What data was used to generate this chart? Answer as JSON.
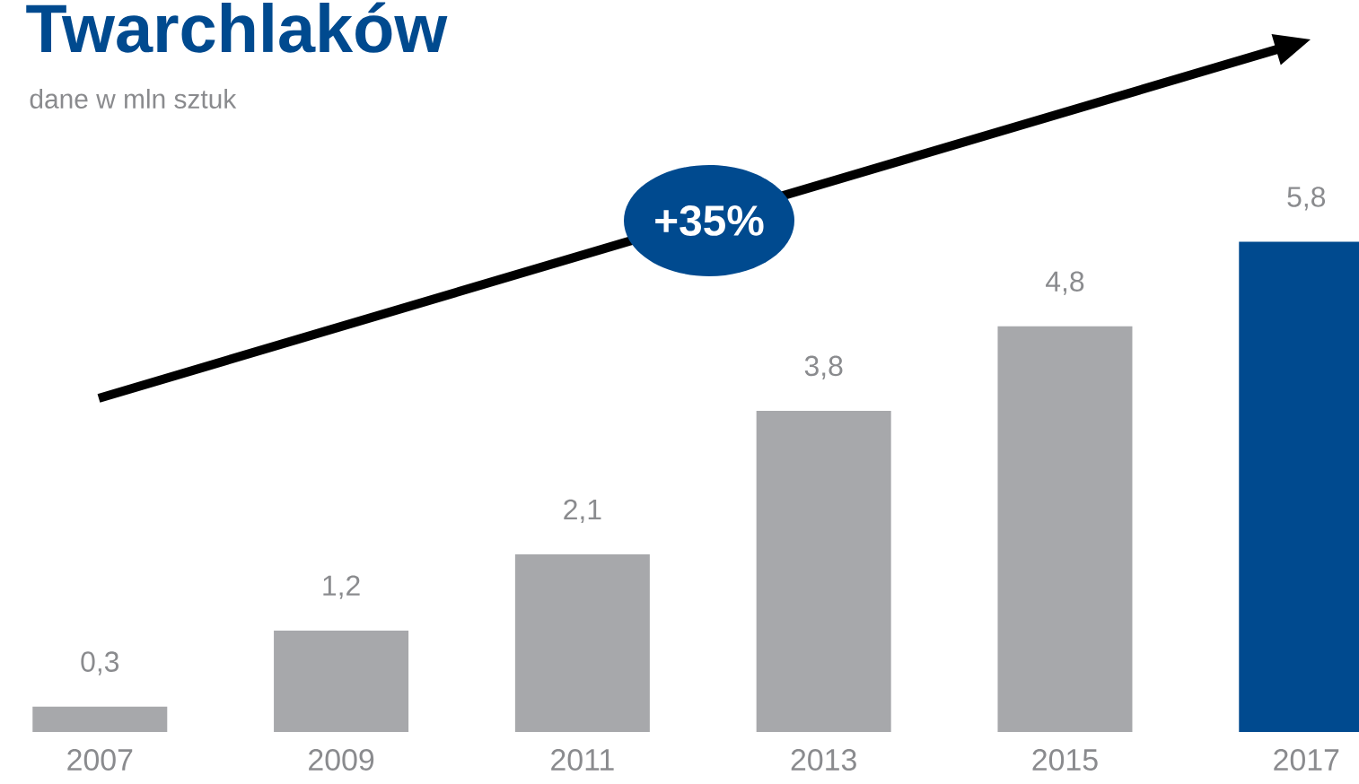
{
  "chart_data": {
    "type": "bar",
    "title": "Twarchlaków",
    "subtitle": "dane w mln sztuk",
    "categories": [
      "2007",
      "2009",
      "2011",
      "2013",
      "2015",
      "2017"
    ],
    "values": [
      0.3,
      1.2,
      2.1,
      3.8,
      4.8,
      5.8
    ],
    "value_labels": [
      "0,3",
      "1,2",
      "2,1",
      "3,8",
      "4,8",
      "5,8"
    ],
    "colors": [
      "#a7a8ab",
      "#a7a8ab",
      "#a7a8ab",
      "#a7a8ab",
      "#a7a8ab",
      "#004a8f"
    ],
    "annotations": [
      "+35%"
    ]
  }
}
